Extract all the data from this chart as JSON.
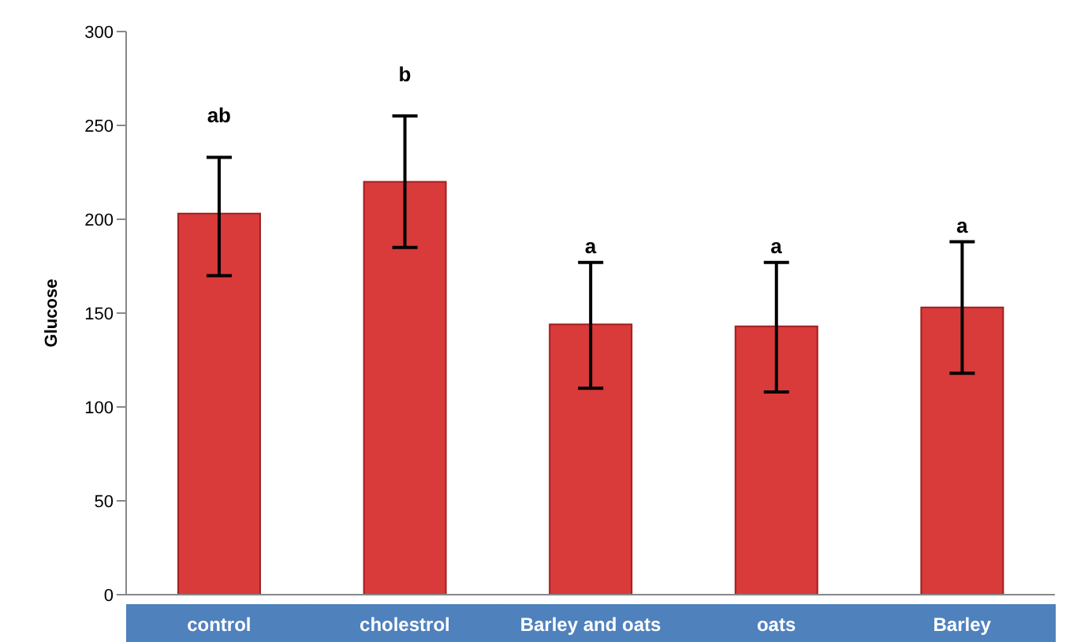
{
  "chart_data": {
    "type": "bar",
    "ylabel": "Glucose",
    "categories": [
      "control",
      "cholestrol",
      "Barley and oats",
      "oats",
      "Barley"
    ],
    "values": [
      203,
      220,
      144,
      143,
      153
    ],
    "errors": [
      [
        170,
        233
      ],
      [
        185,
        255
      ],
      [
        110,
        177
      ],
      [
        108,
        177
      ],
      [
        118,
        188
      ]
    ],
    "color": "#d93a3a",
    "ylim": [
      0,
      300
    ],
    "yticks": [
      0,
      50,
      100,
      150,
      200,
      250,
      300
    ],
    "grid": false,
    "annotations": [
      "ab",
      "b",
      "a",
      "a",
      "a"
    ]
  }
}
